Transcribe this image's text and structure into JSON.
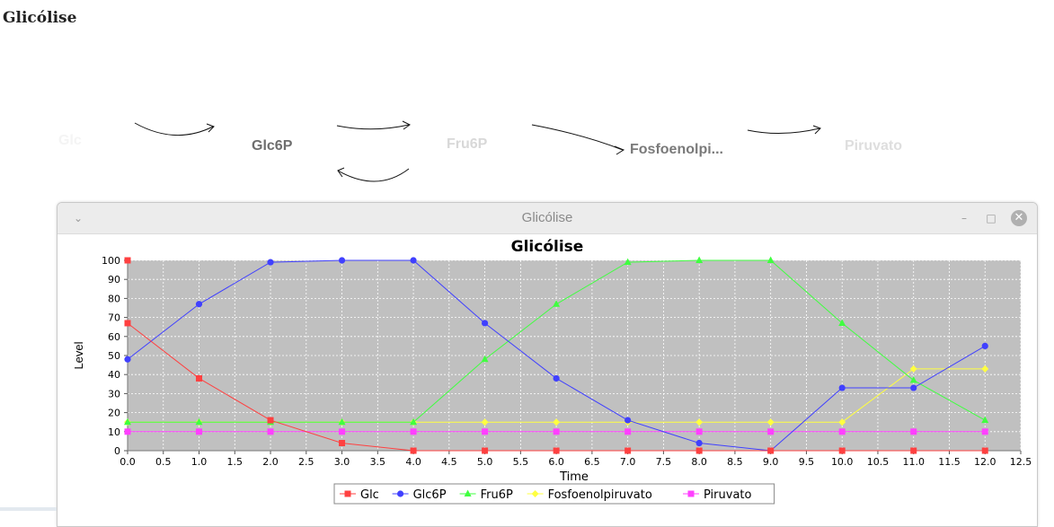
{
  "page": {
    "title": "Glicólise"
  },
  "diagram": {
    "nodes": [
      {
        "label": "Glc",
        "color": "#f4f4f4"
      },
      {
        "label": "Glc6P",
        "color": "#6e6e6e"
      },
      {
        "label": "Fru6P",
        "color": "#d8d8d8"
      },
      {
        "label": "Fosfoenolpi...",
        "color": "#7a7a7a"
      },
      {
        "label": "Piruvato",
        "color": "#dedede"
      }
    ]
  },
  "window": {
    "title": "Glicólise",
    "menu_icon": "chevron-down-icon",
    "minimize_icon": "minimize-icon",
    "maximize_icon": "maximize-icon",
    "close_icon": "close-icon"
  },
  "chart_data": {
    "type": "line",
    "title": "Glicólise",
    "xlabel": "Time",
    "ylabel": "Level",
    "xlim": [
      0,
      12.5
    ],
    "ylim": [
      0,
      100
    ],
    "x_ticks": [
      "0.0",
      "0.5",
      "1.0",
      "1.5",
      "2.0",
      "2.5",
      "3.0",
      "3.5",
      "4.0",
      "4.5",
      "5.0",
      "5.5",
      "6.0",
      "6.5",
      "7.0",
      "7.5",
      "8.0",
      "8.5",
      "9.0",
      "9.5",
      "10.0",
      "10.5",
      "11.0",
      "11.5",
      "12.0",
      "12.5"
    ],
    "y_ticks": [
      "0",
      "10",
      "20",
      "30",
      "40",
      "50",
      "60",
      "70",
      "80",
      "90",
      "100"
    ],
    "grid": true,
    "legend_position": "bottom-center",
    "background": "#c0c0c0",
    "x": [
      0,
      1,
      2,
      3,
      4,
      5,
      6,
      7,
      8,
      9,
      10,
      11,
      12
    ],
    "series": [
      {
        "name": "Glc",
        "color": "#ff4040",
        "marker": "square",
        "values": [
          67,
          38,
          16,
          4,
          0,
          0,
          0,
          0,
          0,
          0,
          0,
          0,
          0
        ],
        "extra_points": [
          [
            0,
            100
          ]
        ]
      },
      {
        "name": "Glc6P",
        "color": "#4040ff",
        "marker": "circle",
        "values": [
          48,
          77,
          99,
          100,
          100,
          67,
          38,
          16,
          4,
          0,
          33,
          33,
          55
        ]
      },
      {
        "name": "Fru6P",
        "color": "#40ff40",
        "marker": "triangle",
        "values": [
          15,
          15,
          15,
          15,
          15,
          48,
          77,
          99,
          100,
          100,
          67,
          37,
          16
        ]
      },
      {
        "name": "Fosfoenolpiruvato",
        "color": "#ffff40",
        "marker": "diamond",
        "values": [
          15,
          15,
          15,
          15,
          15,
          15,
          15,
          15,
          15,
          15,
          15,
          43,
          43
        ]
      },
      {
        "name": "Piruvato",
        "color": "#ff40ff",
        "marker": "square",
        "values": [
          10,
          10,
          10,
          10,
          10,
          10,
          10,
          10,
          10,
          10,
          10,
          10,
          10
        ]
      }
    ]
  }
}
